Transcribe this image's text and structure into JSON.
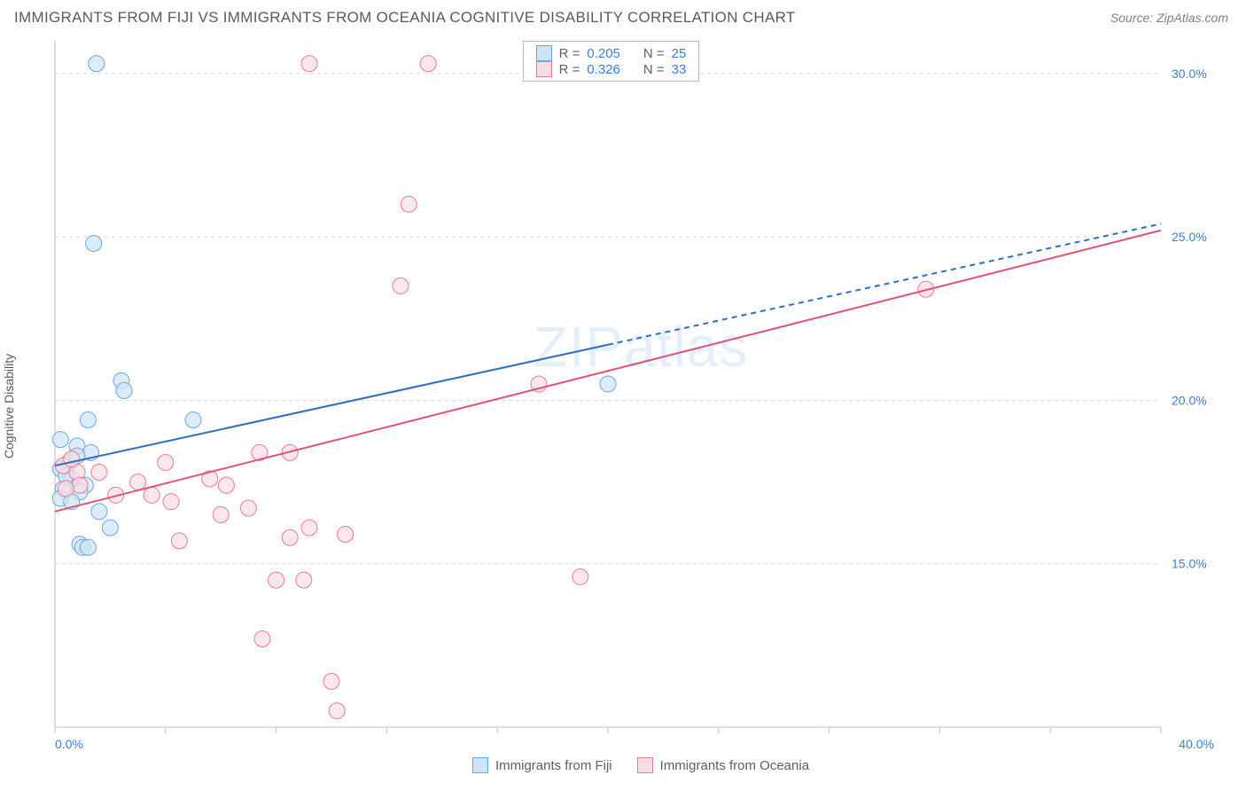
{
  "header": {
    "title": "IMMIGRANTS FROM FIJI VS IMMIGRANTS FROM OCEANIA COGNITIVE DISABILITY CORRELATION CHART",
    "source": "Source: ZipAtlas.com"
  },
  "chart": {
    "type": "scatter",
    "ylabel": "Cognitive Disability",
    "background_color": "#ffffff",
    "grid_color": "#d9d9d9",
    "axis_color": "#bfbfbf",
    "tick_label_color": "#3b7dd8",
    "tick_fontsize": 14,
    "xlim": [
      0,
      40
    ],
    "ylim": [
      10,
      31
    ],
    "xticks": [
      {
        "v": 0,
        "label": "0.0%"
      },
      {
        "v": 40,
        "label": "40.0%"
      }
    ],
    "yticks": [
      {
        "v": 15,
        "label": "15.0%"
      },
      {
        "v": 20,
        "label": "20.0%"
      },
      {
        "v": 25,
        "label": "25.0%"
      },
      {
        "v": 30,
        "label": "30.0%"
      }
    ],
    "xticks_minor": [
      4,
      8,
      12,
      16,
      20,
      24,
      28,
      32,
      36
    ],
    "marker_radius": 9,
    "marker_stroke_width": 1,
    "line_width": 2,
    "watermark": "ZIPatlas",
    "series": [
      {
        "name": "Immigrants from Fiji",
        "color_fill": "#cfe4f7",
        "color_stroke": "#6aa7e0",
        "line_color": "#2e6fbf",
        "R": "0.205",
        "N": "25",
        "trend": {
          "x1": 0,
          "y1": 18.0,
          "x2": 20,
          "y2": 21.7,
          "x2ext": 40,
          "y2ext": 25.4
        },
        "points": [
          {
            "x": 1.5,
            "y": 30.3
          },
          {
            "x": 1.4,
            "y": 24.8
          },
          {
            "x": 2.4,
            "y": 20.6
          },
          {
            "x": 2.5,
            "y": 20.3
          },
          {
            "x": 5.0,
            "y": 19.4
          },
          {
            "x": 1.2,
            "y": 19.4
          },
          {
            "x": 0.2,
            "y": 18.8
          },
          {
            "x": 0.8,
            "y": 18.6
          },
          {
            "x": 1.3,
            "y": 18.4
          },
          {
            "x": 20.0,
            "y": 20.5
          },
          {
            "x": 0.5,
            "y": 18.1
          },
          {
            "x": 0.2,
            "y": 17.9
          },
          {
            "x": 0.6,
            "y": 17.6
          },
          {
            "x": 1.1,
            "y": 17.4
          },
          {
            "x": 0.3,
            "y": 17.3
          },
          {
            "x": 0.9,
            "y": 17.2
          },
          {
            "x": 0.2,
            "y": 17.0
          },
          {
            "x": 0.6,
            "y": 16.9
          },
          {
            "x": 1.6,
            "y": 16.6
          },
          {
            "x": 2.0,
            "y": 16.1
          },
          {
            "x": 0.9,
            "y": 15.6
          },
          {
            "x": 1.0,
            "y": 15.5
          },
          {
            "x": 1.2,
            "y": 15.5
          },
          {
            "x": 0.8,
            "y": 18.3
          },
          {
            "x": 0.4,
            "y": 17.7
          }
        ]
      },
      {
        "name": "Immigrants from Oceania",
        "color_fill": "#fbdde4",
        "color_stroke": "#e87b96",
        "line_color": "#e05577",
        "R": "0.326",
        "N": "33",
        "trend": {
          "x1": 0,
          "y1": 16.6,
          "x2": 40,
          "y2": 25.2,
          "x2ext": 40,
          "y2ext": 25.2
        },
        "points": [
          {
            "x": 9.2,
            "y": 30.3
          },
          {
            "x": 13.5,
            "y": 30.3
          },
          {
            "x": 12.8,
            "y": 26.0
          },
          {
            "x": 12.5,
            "y": 23.5
          },
          {
            "x": 17.5,
            "y": 20.5
          },
          {
            "x": 31.5,
            "y": 23.4
          },
          {
            "x": 7.4,
            "y": 18.4
          },
          {
            "x": 8.5,
            "y": 18.4
          },
          {
            "x": 4.0,
            "y": 18.1
          },
          {
            "x": 0.3,
            "y": 18.0
          },
          {
            "x": 0.8,
            "y": 17.8
          },
          {
            "x": 5.6,
            "y": 17.6
          },
          {
            "x": 3.0,
            "y": 17.5
          },
          {
            "x": 6.2,
            "y": 17.4
          },
          {
            "x": 2.2,
            "y": 17.1
          },
          {
            "x": 3.5,
            "y": 17.1
          },
          {
            "x": 0.9,
            "y": 17.4
          },
          {
            "x": 7.0,
            "y": 16.7
          },
          {
            "x": 4.2,
            "y": 16.9
          },
          {
            "x": 6.0,
            "y": 16.5
          },
          {
            "x": 9.2,
            "y": 16.1
          },
          {
            "x": 10.5,
            "y": 15.9
          },
          {
            "x": 8.5,
            "y": 15.8
          },
          {
            "x": 4.5,
            "y": 15.7
          },
          {
            "x": 19.0,
            "y": 14.6
          },
          {
            "x": 8.0,
            "y": 14.5
          },
          {
            "x": 9.0,
            "y": 14.5
          },
          {
            "x": 7.5,
            "y": 12.7
          },
          {
            "x": 10.0,
            "y": 11.4
          },
          {
            "x": 10.2,
            "y": 10.5
          },
          {
            "x": 1.6,
            "y": 17.8
          },
          {
            "x": 0.4,
            "y": 17.3
          },
          {
            "x": 0.6,
            "y": 18.2
          }
        ]
      }
    ],
    "legend_stats_labels": {
      "R": "R =",
      "N": "N ="
    }
  }
}
